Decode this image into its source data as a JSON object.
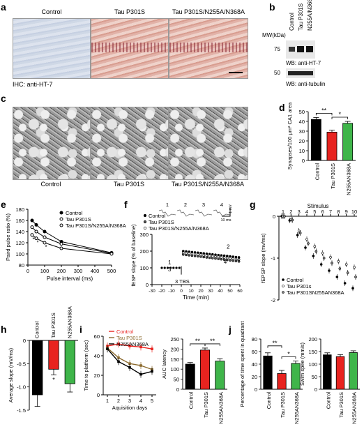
{
  "panel_labels": {
    "a": "a",
    "b": "b",
    "c": "c",
    "d": "d",
    "e": "e",
    "f": "f",
    "g": "g",
    "h": "h",
    "i": "i",
    "j": "j"
  },
  "panel_a": {
    "titles": [
      "Control",
      "Tau P301S",
      "Tau P301S/N255A/N368A"
    ],
    "caption": "IHC: anti-HT-7"
  },
  "panel_b": {
    "mw_label": "MW(kDa)",
    "lanes": [
      "Control",
      "Tau P301S",
      "N255A/N368A"
    ],
    "marker_75": "75",
    "marker_50": "50",
    "wb1": "WB: anti-HT-7",
    "wb2": "WB: anti-tubulin"
  },
  "panel_c": {
    "titles": [
      "Control",
      "Tau P301S",
      "Tau P301S/N255A/N368A"
    ]
  },
  "colors": {
    "control": "#000000",
    "p301s": "#e8231f",
    "mutant": "#3fb54a",
    "brown": "#8b6a2e"
  },
  "chart_data": [
    {
      "panel": "d",
      "type": "bar",
      "categories": [
        "Control",
        "Tau P301S",
        "N255AN368A"
      ],
      "values": [
        42,
        29,
        38
      ],
      "errors": [
        2,
        2,
        2
      ],
      "ylabel": "Synapses/100 μm² CA1 area",
      "ylim": [
        0,
        50
      ],
      "yticks": [
        "0",
        "10",
        "20",
        "30",
        "40",
        "50"
      ],
      "significance": [
        {
          "pair": [
            0,
            1
          ],
          "label": "**"
        },
        {
          "pair": [
            1,
            2
          ],
          "label": "*"
        }
      ]
    },
    {
      "panel": "e",
      "type": "line",
      "xlabel": "Pulse interval (ms)",
      "ylabel": "Paird pulse ratio (%)",
      "xlim": [
        0,
        500
      ],
      "ylim": [
        80,
        180
      ],
      "xticks": [
        "0",
        "100",
        "200",
        "300",
        "400",
        "500"
      ],
      "yticks": [
        "80",
        "100",
        "120",
        "140",
        "160",
        "180"
      ],
      "x": [
        25,
        50,
        100,
        200,
        500
      ],
      "series": [
        {
          "name": "Control",
          "values": [
            160,
            152,
            140,
            122,
            102
          ]
        },
        {
          "name": "Tau P301S",
          "values": [
            148,
            140,
            130,
            118,
            101
          ]
        },
        {
          "name": "Tau P301S/N255A/N368A",
          "values": [
            134,
            128,
            120,
            110,
            100
          ]
        }
      ],
      "annotations": [
        "*",
        "*",
        "*"
      ]
    },
    {
      "panel": "f",
      "type": "scatter",
      "xlabel": "Time (min)",
      "ylabel": "fESP slope (% of baseline)",
      "xlim": [
        -30,
        60
      ],
      "ylim": [
        0,
        300
      ],
      "xticks": [
        "-30",
        "-20",
        "-10",
        "0",
        "10",
        "20",
        "30",
        "40",
        "50",
        "60"
      ],
      "yticks": [
        "0",
        "100",
        "200",
        "300"
      ],
      "legend": [
        "Control",
        "Tau P301S",
        "Tau P301S/N255A/N368A"
      ],
      "annotations": {
        "tbs": "3 TBS",
        "trace_nums": [
          "1",
          "2",
          "3",
          "4"
        ],
        "scale_x": "10 ms",
        "scale_y": "1 mV",
        "plot_nums": [
          "1",
          "2",
          "3",
          "4"
        ],
        "star": "*"
      },
      "series": [
        {
          "name": "Control",
          "start": 200,
          "end": 162
        },
        {
          "name": "Tau P301S",
          "start": 180,
          "end": 138
        },
        {
          "name": "Tau P301S/N255A/N368A",
          "start": 190,
          "end": 150
        }
      ]
    },
    {
      "panel": "g",
      "type": "scatter",
      "xlabel": "",
      "ylabel": "fEPSP slope (mv/ms)",
      "top_label": "Stimulus",
      "xticks": [
        "1",
        "2",
        "3",
        "4",
        "5",
        "6",
        "7",
        "8",
        "9",
        "10"
      ],
      "ylim": [
        -2,
        0
      ],
      "yticks": [
        "-2",
        "-1",
        "0"
      ],
      "legend": [
        "Control",
        "Tau P301s",
        "Tau P301SN255AN368A"
      ],
      "series": [
        {
          "name": "Control",
          "values": [
            0,
            -0.1,
            -0.45,
            -0.75,
            -0.95,
            -1.15,
            -1.3,
            -1.45,
            -1.6,
            -1.72
          ]
        },
        {
          "name": "Tau P301s",
          "values": [
            0,
            -0.08,
            -0.35,
            -0.55,
            -0.72,
            -0.88,
            -0.98,
            -1.08,
            -1.15,
            -1.22
          ]
        },
        {
          "name": "Tau P301SN255AN368A",
          "values": [
            0,
            -0.09,
            -0.4,
            -0.65,
            -0.84,
            -1.0,
            -1.12,
            -1.25,
            -1.35,
            -1.45
          ]
        }
      ]
    },
    {
      "panel": "h",
      "type": "bar",
      "categories": [
        "Control",
        "Tau P301S",
        "N255AN368A"
      ],
      "values": [
        -1.17,
        -0.62,
        -0.93
      ],
      "errors": [
        0.25,
        0.12,
        0.18
      ],
      "ylabel": "Average slope (mV/ms)",
      "ylim": [
        -1.5,
        0
      ],
      "yticks": [
        "0",
        "-0.5",
        "-1.0",
        "-1.5"
      ],
      "annotation": "*"
    },
    {
      "panel": "i-left",
      "type": "line",
      "xlabel": "Aquisition days",
      "ylabel": "Time to platform (sec)",
      "xticks": [
        "1",
        "2",
        "3",
        "4",
        "5"
      ],
      "ylim": [
        0,
        60
      ],
      "yticks": [
        "0",
        "20",
        "40",
        "60"
      ],
      "x": [
        1,
        2,
        3,
        4,
        5
      ],
      "series": [
        {
          "name": "Control",
          "values": [
            50,
            52,
            50,
            49,
            47
          ]
        },
        {
          "name": "Tau P301S",
          "values": [
            48,
            38,
            32,
            30,
            26
          ]
        },
        {
          "name": "N255AN368A",
          "values": [
            47,
            34,
            28,
            21,
            24
          ]
        }
      ]
    },
    {
      "panel": "i-right",
      "type": "bar",
      "categories": [
        "Control",
        "Tau P301S",
        "N255AN368A"
      ],
      "values": [
        125,
        195,
        140
      ],
      "errors": [
        8,
        10,
        12
      ],
      "ylabel": "AUC latency",
      "ylim": [
        0,
        250
      ],
      "yticks": [
        "0",
        "50",
        "100",
        "150",
        "200",
        "250"
      ],
      "significance": [
        {
          "pair": [
            0,
            1
          ],
          "label": "**"
        },
        {
          "pair": [
            1,
            2
          ],
          "label": "**"
        }
      ]
    },
    {
      "panel": "j-left",
      "type": "bar",
      "categories": [
        "Control",
        "Tau P301S",
        "N255AN368A"
      ],
      "values": [
        53,
        25,
        41
      ],
      "errors": [
        5,
        5,
        4
      ],
      "ylabel": "Percentage of time spent in quadrant",
      "ylim": [
        0,
        80
      ],
      "yticks": [
        "0",
        "20",
        "40",
        "60",
        "80"
      ],
      "significance": [
        {
          "pair": [
            0,
            1
          ],
          "label": "**"
        },
        {
          "pair": [
            1,
            2
          ],
          "label": "*"
        }
      ]
    },
    {
      "panel": "j-right",
      "type": "bar",
      "categories": [
        "Control",
        "Tau P301S",
        "N255AN368A"
      ],
      "values": [
        137,
        130,
        146
      ],
      "errors": [
        8,
        8,
        7
      ],
      "ylabel": "Swim spee (mm/s)",
      "ylim": [
        0,
        200
      ],
      "yticks": [
        "0",
        "50",
        "100",
        "150",
        "200"
      ]
    }
  ]
}
